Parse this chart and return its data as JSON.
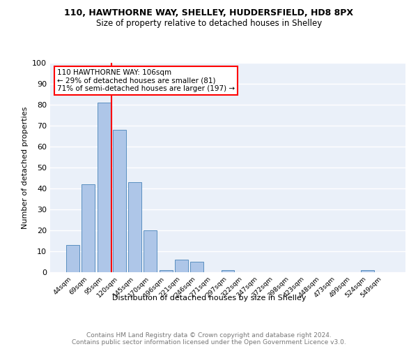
{
  "title1": "110, HAWTHORNE WAY, SHELLEY, HUDDERSFIELD, HD8 8PX",
  "title2": "Size of property relative to detached houses in Shelley",
  "xlabel": "Distribution of detached houses by size in Shelley",
  "ylabel": "Number of detached properties",
  "categories": [
    "44sqm",
    "69sqm",
    "95sqm",
    "120sqm",
    "145sqm",
    "170sqm",
    "196sqm",
    "221sqm",
    "246sqm",
    "271sqm",
    "297sqm",
    "322sqm",
    "347sqm",
    "372sqm",
    "398sqm",
    "423sqm",
    "448sqm",
    "473sqm",
    "499sqm",
    "524sqm",
    "549sqm"
  ],
  "values": [
    13,
    42,
    81,
    68,
    43,
    20,
    1,
    6,
    5,
    0,
    1,
    0,
    0,
    0,
    0,
    0,
    0,
    0,
    0,
    1,
    0
  ],
  "bar_color": "#aec6e8",
  "bar_edge_color": "#5a8fc0",
  "vline_x": 2.5,
  "vline_color": "red",
  "annotation_text": "110 HAWTHORNE WAY: 106sqm\n← 29% of detached houses are smaller (81)\n71% of semi-detached houses are larger (197) →",
  "annotation_box_color": "white",
  "annotation_box_edge_color": "red",
  "background_color": "#eaf0f9",
  "grid_color": "white",
  "footer_text": "Contains HM Land Registry data © Crown copyright and database right 2024.\nContains public sector information licensed under the Open Government Licence v3.0.",
  "ylim": [
    0,
    100
  ],
  "yticks": [
    0,
    10,
    20,
    30,
    40,
    50,
    60,
    70,
    80,
    90,
    100
  ]
}
